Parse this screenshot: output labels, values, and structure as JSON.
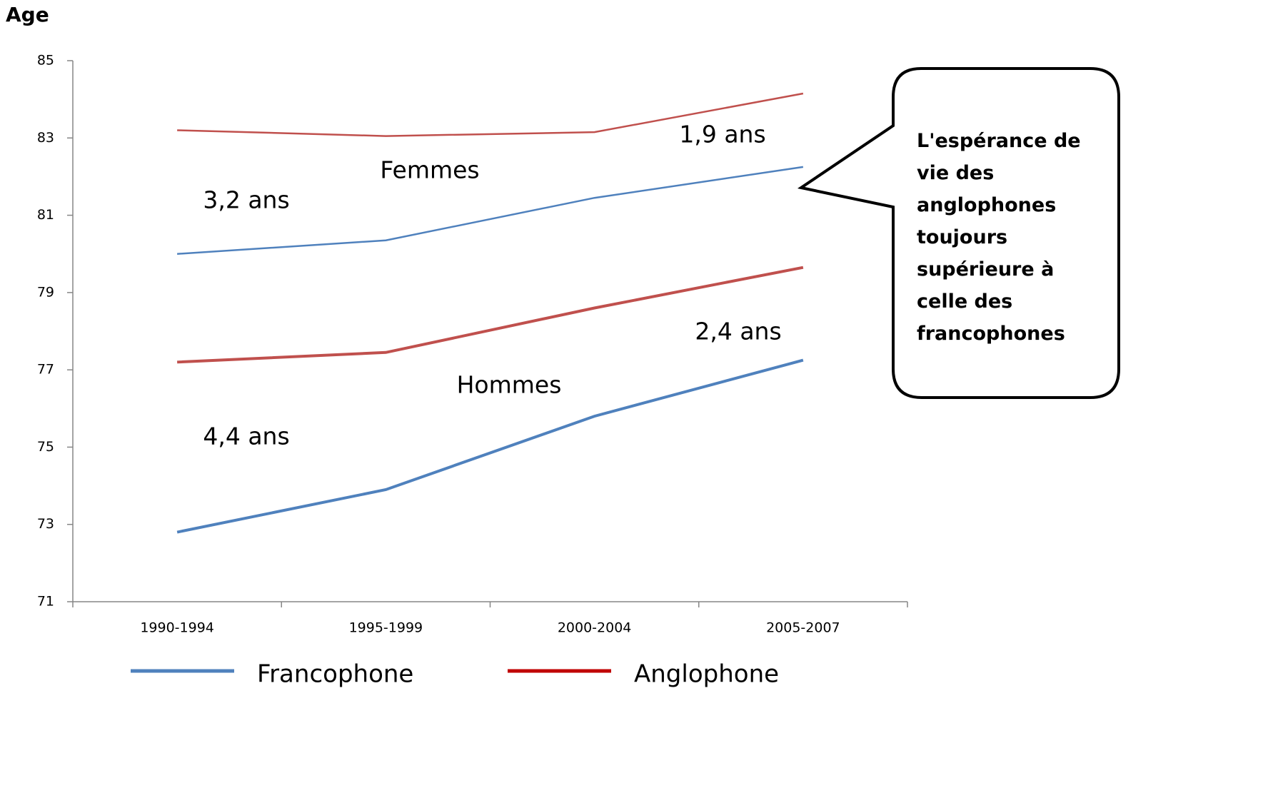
{
  "chart_data": {
    "type": "line",
    "y_axis_label": "Age",
    "categories": [
      "1990-1994",
      "1995-1999",
      "2000-2004",
      "2005-2007"
    ],
    "ylim": [
      71,
      85
    ],
    "yticks": [
      71,
      73,
      75,
      77,
      79,
      81,
      83,
      85
    ],
    "series": [
      {
        "name": "Francophone",
        "color": "#4f81bd",
        "legend_color": "#4f81bd",
        "lines": [
          {
            "values": [
              80.0,
              80.35,
              81.45,
              82.25
            ]
          },
          {
            "values": [
              72.8,
              73.9,
              75.8,
              77.25
            ]
          }
        ]
      },
      {
        "name": "Anglophone",
        "color": "#c0504d",
        "legend_color": "#c00000",
        "lines": [
          {
            "values": [
              83.2,
              83.05,
              83.15,
              84.15
            ]
          },
          {
            "values": [
              77.2,
              77.45,
              78.6,
              79.65
            ]
          }
        ]
      }
    ],
    "annotations": [
      "3,2 ans",
      "Femmes",
      "1,9 ans",
      "2,4 ans",
      "Hommes",
      "4,4 ans"
    ],
    "callout": "L'espérance de vie des anglophones toujours supérieure à celle des francophones"
  }
}
